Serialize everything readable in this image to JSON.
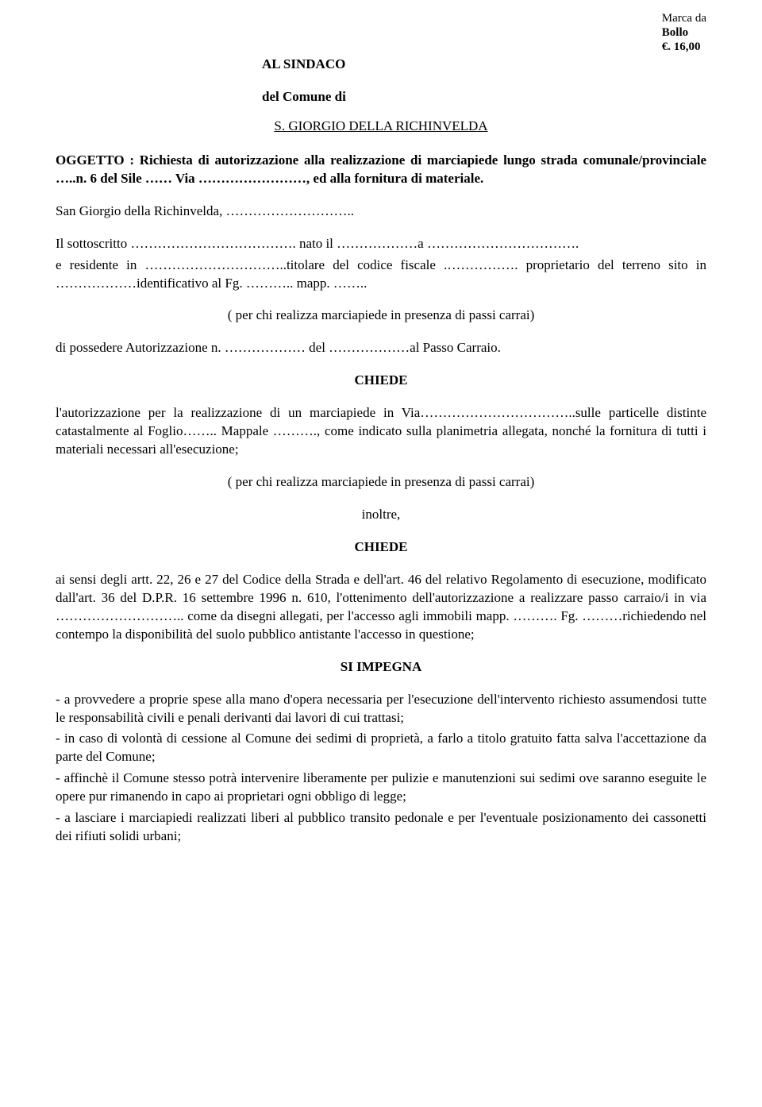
{
  "stamp": {
    "line1": "Marca da",
    "line2": "Bollo",
    "line3": "€. 16,00"
  },
  "header": {
    "to": "AL SINDACO",
    "of": "del Comune di",
    "entity": "S. GIORGIO DELLA RICHINVELDA"
  },
  "oggetto": {
    "label": "OGGETTO :",
    "line1": "Richiesta di autorizzazione alla realizzazione di marciapiede lungo strada comunale/provinciale …..n. 6 del Sile …… Via ……………………, ed alla fornitura di materiale."
  },
  "luogo_data": "San Giorgio della Richinvelda, ………………………..",
  "sottoscritto": {
    "l1": "Il sottoscritto ………………………………. nato il ………………a …………………………….",
    "l2": "e residente in …………………………..titolare del codice fiscale .……………. proprietario del terreno sito in ………………identificativo al Fg. ……….. mapp. …….."
  },
  "note_passi_carrai": "( per chi realizza marciapiede in presenza di passi carrai)",
  "possedere": "di possedere Autorizzazione n. ……………… del ………………al Passo Carraio.",
  "chiede_label": "CHIEDE",
  "chiede_text": "l'autorizzazione per la realizzazione di un marciapiede in Via……………………………..sulle particelle distinte catastalmente al Foglio…….. Mappale ………., come indicato sulla planimetria allegata, nonché la fornitura di tutti i materiali necessari all'esecuzione;",
  "inoltre": "inoltre,",
  "chiede2_text": "ai sensi degli artt. 22, 26 e 27 del Codice della Strada e dell'art. 46 del relativo Regolamento di esecuzione, modificato dall'art. 36 del D.P.R. 16 settembre 1996 n. 610, l'ottenimento dell'autorizzazione a realizzare passo carraio/i in via ……………………….. come da disegni allegati, per l'accesso agli immobili mapp. ………. Fg. ………richiedendo nel contempo la disponibilità del suolo pubblico antistante l'accesso in questione;",
  "si_impegna_label": "SI  IMPEGNA",
  "impegna_items": [
    "- a provvedere a proprie spese alla mano d'opera necessaria per l'esecuzione dell'intervento richiesto assumendosi tutte le responsabilità civili e penali derivanti dai lavori di cui trattasi;",
    "- in caso di volontà di cessione al Comune dei sedimi di proprietà, a farlo a titolo gratuito fatta salva l'accettazione da parte del Comune;",
    "- affinchè il Comune stesso potrà intervenire liberamente per pulizie e manutenzioni sui sedimi ove saranno eseguite le opere pur rimanendo in capo ai proprietari ogni obbligo di legge;",
    "- a lasciare i marciapiedi realizzati liberi al pubblico transito pedonale e per l'eventuale posizionamento dei cassonetti dei rifiuti solidi urbani;"
  ]
}
